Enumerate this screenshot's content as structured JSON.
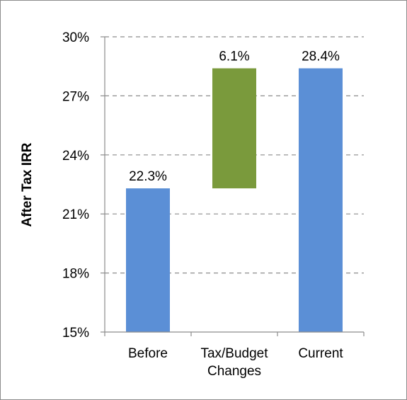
{
  "chart_data": {
    "type": "bar",
    "subtype": "waterfall",
    "ylabel": "After Tax IRR",
    "xlabel": "",
    "ylim": [
      15,
      30
    ],
    "yticks": [
      15,
      18,
      21,
      24,
      27,
      30
    ],
    "ytick_labels": [
      "15%",
      "18%",
      "21%",
      "24%",
      "27%",
      "30%"
    ],
    "categories": [
      [
        "Before"
      ],
      [
        "Tax/Budget",
        "Changes"
      ],
      [
        "Current"
      ]
    ],
    "bars": [
      {
        "base": 15,
        "value": 22.3,
        "label": "22.3%",
        "color": "#5b8fd6"
      },
      {
        "base": 22.3,
        "value": 28.4,
        "label": "6.1%",
        "color": "#7a9a3c"
      },
      {
        "base": 15,
        "value": 28.4,
        "label": "28.4%",
        "color": "#5b8fd6"
      }
    ],
    "grid": true,
    "grid_style": "dashed",
    "legend": "none"
  }
}
